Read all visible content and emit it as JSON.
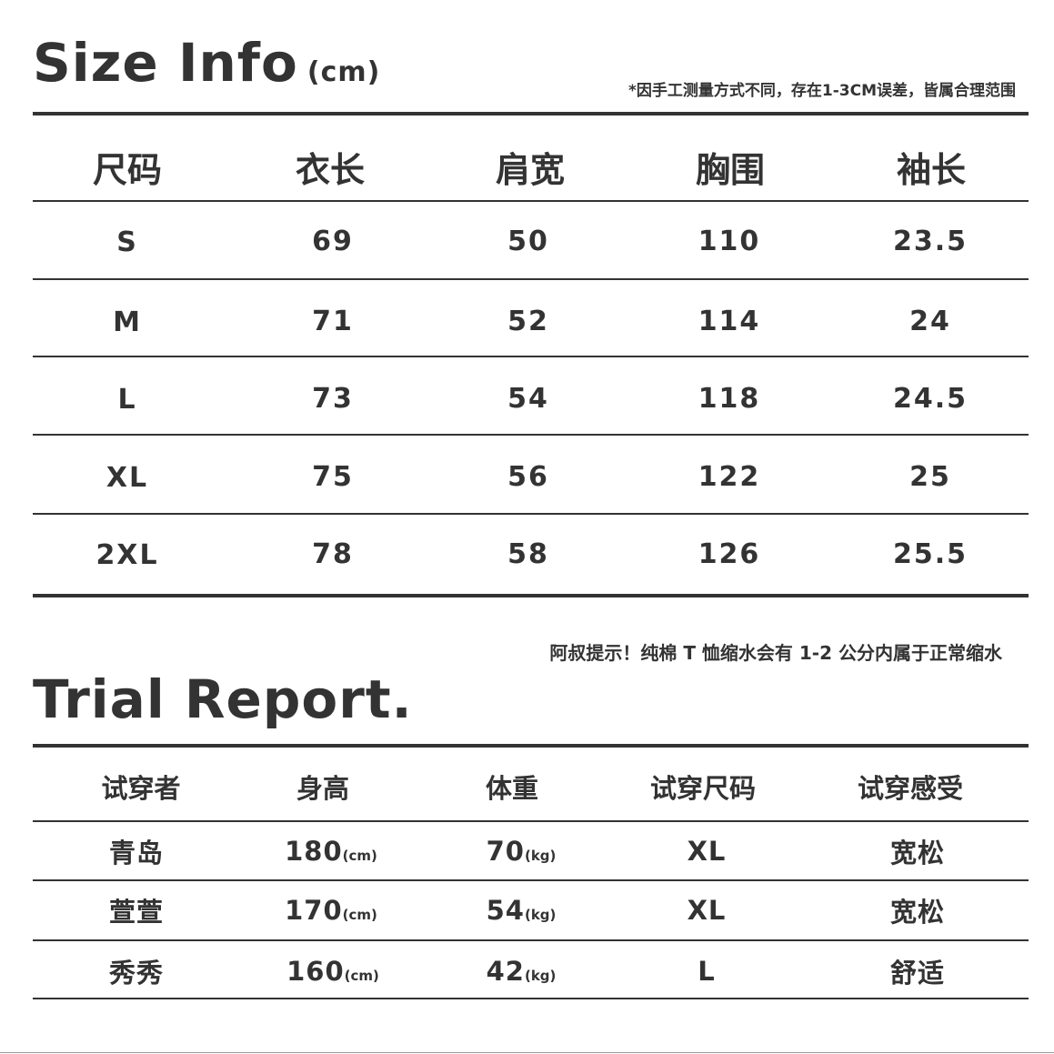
{
  "size_info": {
    "title": "Size Info",
    "unit": "(cm)",
    "note": "*因手工测量方式不同，存在1-3CM误差，皆属合理范围",
    "headers": [
      "尺码",
      "衣长",
      "肩宽",
      "胸围",
      "袖长"
    ],
    "rows": [
      [
        "S",
        "69",
        "50",
        "110",
        "23.5"
      ],
      [
        "M",
        "71",
        "52",
        "114",
        "24"
      ],
      [
        "L",
        "73",
        "54",
        "118",
        "24.5"
      ],
      [
        "XL",
        "75",
        "56",
        "122",
        "25"
      ],
      [
        "2XL",
        "78",
        "58",
        "126",
        "25.5"
      ]
    ]
  },
  "tip": "阿叔提示！纯棉 T 恤缩水会有 1-2 公分内属于正常缩水",
  "trial_report": {
    "title": "Trial Report.",
    "headers": [
      "试穿者",
      "身高",
      "体重",
      "试穿尺码",
      "试穿感受"
    ],
    "height_unit": "(cm)",
    "weight_unit": "(kg)",
    "rows": [
      {
        "name": "青岛",
        "height": "180",
        "weight": "70",
        "size": "XL",
        "feel": "宽松"
      },
      {
        "name": "萱萱",
        "height": "170",
        "weight": "54",
        "size": "XL",
        "feel": "宽松"
      },
      {
        "name": "秀秀",
        "height": "160",
        "weight": "42",
        "size": "L",
        "feel": "舒适"
      }
    ]
  }
}
